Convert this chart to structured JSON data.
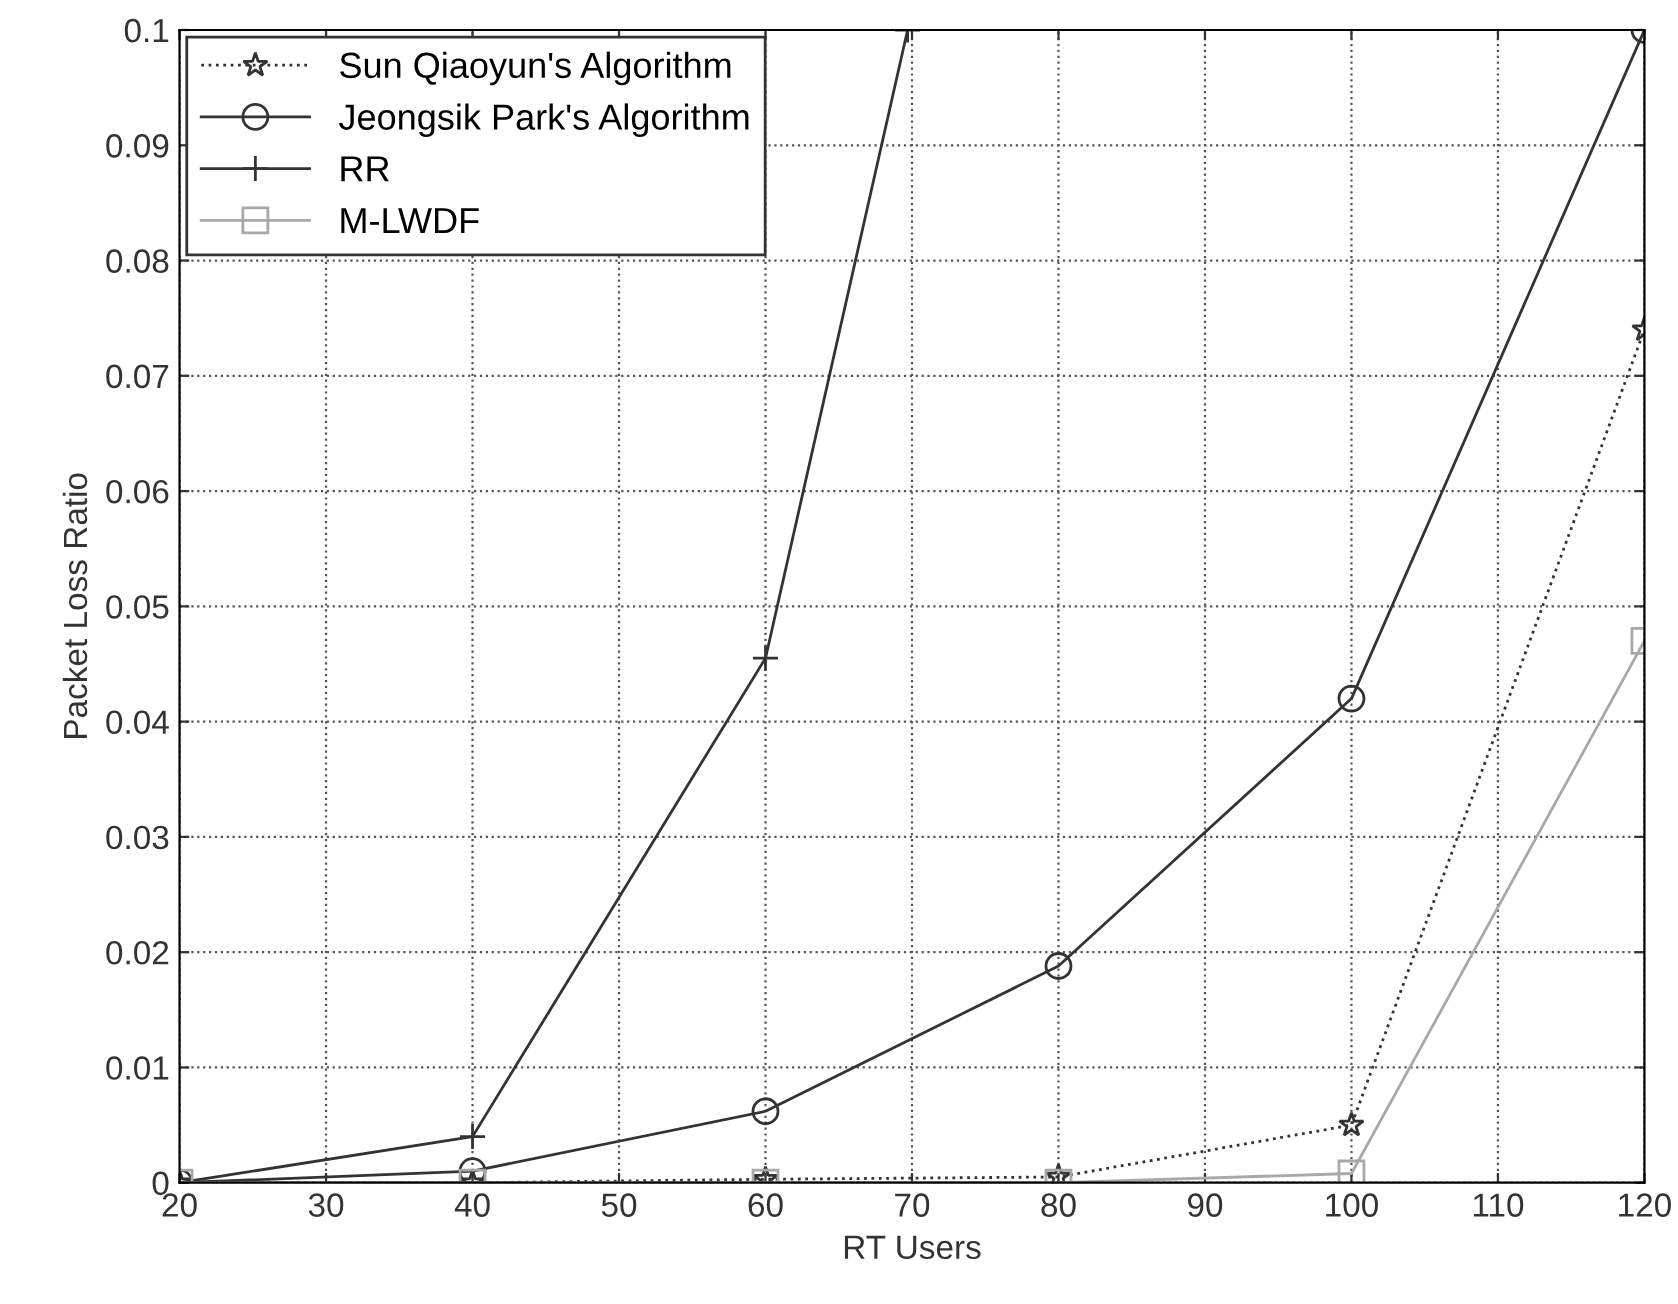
{
  "chart_data": {
    "type": "line",
    "xlabel": "RT Users",
    "ylabel": "Packet Loss Ratio",
    "x": [
      20,
      40,
      60,
      80,
      100,
      120
    ],
    "series": [
      {
        "name": "Sun Qiaoyun's Algorithm",
        "color": "#333333",
        "marker": "star",
        "line_style": "dotted",
        "values": [
          0,
          0,
          0.0003,
          0.0005,
          0.005,
          0.074
        ]
      },
      {
        "name": "Jeongsik Park's Algorithm",
        "color": "#333333",
        "marker": "circle",
        "line_style": "solid",
        "values": [
          0,
          0.001,
          0.0062,
          0.0188,
          0.042,
          0.1
        ]
      },
      {
        "name": "RR",
        "color": "#333333",
        "marker": "cross",
        "line_style": "solid",
        "x": [
          20,
          40,
          60,
          69.7
        ],
        "values": [
          0,
          0.004,
          0.0455,
          0.1
        ]
      },
      {
        "name": "M-LWDF",
        "color": "#a8a8a8",
        "marker": "square",
        "line_style": "solid",
        "values": [
          0,
          0,
          0,
          0,
          0.0008,
          0.047
        ]
      }
    ],
    "xlim": [
      20,
      120
    ],
    "xticks": [
      20,
      30,
      40,
      50,
      60,
      70,
      80,
      90,
      100,
      110,
      120
    ],
    "ylim": [
      0,
      0.1
    ],
    "yticks": [
      0,
      0.01,
      0.02,
      0.03,
      0.04,
      0.05,
      0.06,
      0.07,
      0.08,
      0.09,
      0.1
    ],
    "grid": true,
    "legend": "top left"
  }
}
